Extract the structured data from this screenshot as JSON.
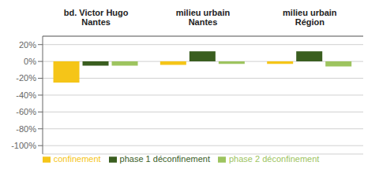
{
  "chart_data": {
    "type": "bar",
    "categories": [
      "bd. Victor Hugo\nNantes",
      "milieu urbain\nNantes",
      "milieu urbain\nRégion"
    ],
    "series": [
      {
        "name": "confinement",
        "color": "#F5C518",
        "values": [
          -25,
          -4,
          -3
        ]
      },
      {
        "name": "phase 1 déconfinement",
        "color": "#3A5E1F",
        "values": [
          -5,
          12,
          12
        ]
      },
      {
        "name": "phase 2 déconfinement",
        "color": "#9DC45F",
        "values": [
          -5,
          -3,
          -6
        ]
      }
    ],
    "ylim": [
      -110,
      30
    ],
    "yticks": [
      {
        "value": 20,
        "label": "20%"
      },
      {
        "value": 0,
        "label": "0%"
      },
      {
        "value": -20,
        "label": "-20%"
      },
      {
        "value": -40,
        "label": "-40%"
      },
      {
        "value": -60,
        "label": "-60%"
      },
      {
        "value": -80,
        "label": "-80%"
      },
      {
        "value": -100,
        "label": "-100%"
      }
    ],
    "grid": true,
    "legend": "bottom"
  }
}
